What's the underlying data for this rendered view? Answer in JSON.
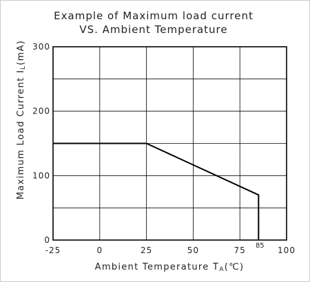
{
  "chart_data": {
    "type": "line",
    "title_lines": [
      "Example of Maximum load current",
      "VS. Ambient Temperature"
    ],
    "xlabel": {
      "main": "Ambient Temperature T",
      "sub": "A",
      "unit": "(℃)"
    },
    "ylabel": {
      "main": "Maximum Load Current I",
      "sub": "L",
      "unit": "(mA)"
    },
    "xlim": [
      -25,
      100
    ],
    "ylim": [
      0,
      300
    ],
    "x_ticks": [
      -25,
      0,
      25,
      50,
      75,
      100
    ],
    "y_ticks": [
      0,
      100,
      200,
      300
    ],
    "x_tick_labels": [
      "-25",
      "0",
      "25",
      "50",
      "75",
      "100"
    ],
    "y_tick_labels": [
      "0",
      "100",
      "200",
      "300"
    ],
    "grid": true,
    "series": [
      {
        "x": [
          -25,
          25,
          85,
          85
        ],
        "y": [
          150,
          150,
          70,
          0
        ]
      }
    ],
    "annotations": [
      {
        "text": "85",
        "x": 85
      }
    ]
  }
}
